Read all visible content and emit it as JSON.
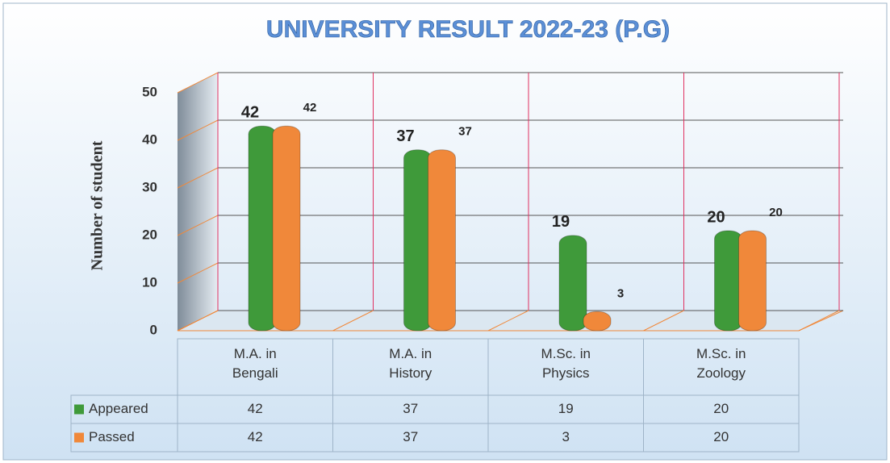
{
  "chart_data": {
    "type": "bar",
    "title": "UNIVERSITY RESULT 2022-23 (P.G)",
    "y_label": "Number of student",
    "categories": [
      "M.A. in Bengali",
      "M.A. in History",
      "M.Sc. in Physics",
      "M.Sc. in Zoology"
    ],
    "series": [
      {
        "name": "Appeared",
        "color": "#3f9a3a",
        "values": [
          42,
          37,
          19,
          20
        ]
      },
      {
        "name": "Passed",
        "color": "#f0883a",
        "values": [
          42,
          37,
          3,
          20
        ]
      }
    ],
    "ylim": [
      0,
      50
    ],
    "yticks": [
      0,
      10,
      20,
      30,
      40,
      50
    ],
    "grid": true
  }
}
